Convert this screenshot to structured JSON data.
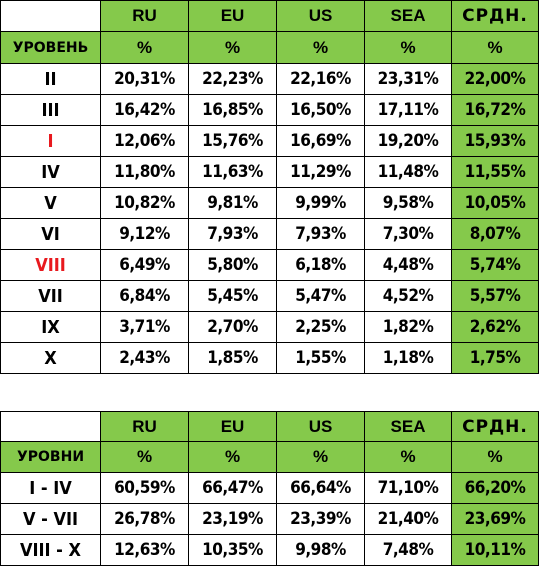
{
  "colors": {
    "accent_green": "#85c94b",
    "highlight_red": "#e8191e"
  },
  "table_levels": {
    "columns": [
      "RU",
      "EU",
      "US",
      "SEA",
      "СРДН."
    ],
    "row_header_label": "УРОВЕНЬ",
    "unit": "%",
    "rows": [
      {
        "level": "II",
        "highlight": false,
        "values": [
          "20,31%",
          "22,23%",
          "22,16%",
          "23,31%",
          "22,00%"
        ]
      },
      {
        "level": "III",
        "highlight": false,
        "values": [
          "16,42%",
          "16,85%",
          "16,50%",
          "17,11%",
          "16,72%"
        ]
      },
      {
        "level": "I",
        "highlight": true,
        "values": [
          "12,06%",
          "15,76%",
          "16,69%",
          "19,20%",
          "15,93%"
        ]
      },
      {
        "level": "IV",
        "highlight": false,
        "values": [
          "11,80%",
          "11,63%",
          "11,29%",
          "11,48%",
          "11,55%"
        ]
      },
      {
        "level": "V",
        "highlight": false,
        "values": [
          "10,82%",
          "9,81%",
          "9,99%",
          "9,58%",
          "10,05%"
        ]
      },
      {
        "level": "VI",
        "highlight": false,
        "values": [
          "9,12%",
          "7,93%",
          "7,93%",
          "7,30%",
          "8,07%"
        ]
      },
      {
        "level": "VIII",
        "highlight": true,
        "values": [
          "6,49%",
          "5,80%",
          "6,18%",
          "4,48%",
          "5,74%"
        ]
      },
      {
        "level": "VII",
        "highlight": false,
        "values": [
          "6,84%",
          "5,45%",
          "5,47%",
          "4,52%",
          "5,57%"
        ]
      },
      {
        "level": "IX",
        "highlight": false,
        "values": [
          "3,71%",
          "2,70%",
          "2,25%",
          "1,82%",
          "2,62%"
        ]
      },
      {
        "level": "X",
        "highlight": false,
        "values": [
          "2,43%",
          "1,85%",
          "1,55%",
          "1,18%",
          "1,75%"
        ]
      }
    ]
  },
  "table_groups": {
    "columns": [
      "RU",
      "EU",
      "US",
      "SEA",
      "СРДН."
    ],
    "row_header_label": "УРОВНИ",
    "unit": "%",
    "rows": [
      {
        "level": "I - IV",
        "values": [
          "60,59%",
          "66,47%",
          "66,64%",
          "71,10%",
          "66,20%"
        ]
      },
      {
        "level": "V - VII",
        "values": [
          "26,78%",
          "23,19%",
          "23,39%",
          "21,40%",
          "23,69%"
        ]
      },
      {
        "level": "VIII - X",
        "values": [
          "12,63%",
          "10,35%",
          "9,98%",
          "7,48%",
          "10,11%"
        ]
      }
    ]
  }
}
